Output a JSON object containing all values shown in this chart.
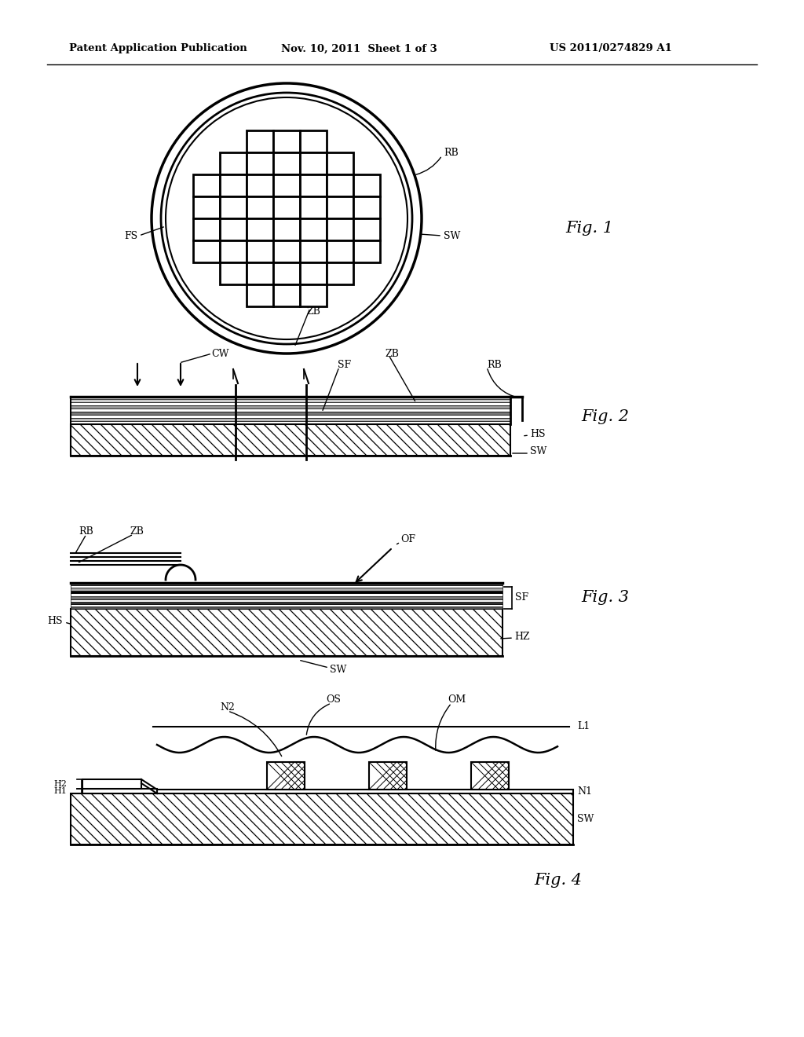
{
  "header_left": "Patent Application Publication",
  "header_mid": "Nov. 10, 2011  Sheet 1 of 3",
  "header_right": "US 2011/0274829 A1",
  "fig1_label": "Fig. 1",
  "fig2_label": "Fig. 2",
  "fig3_label": "Fig. 3",
  "fig4_label": "Fig. 4",
  "bg_color": "#ffffff",
  "line_color": "#000000"
}
